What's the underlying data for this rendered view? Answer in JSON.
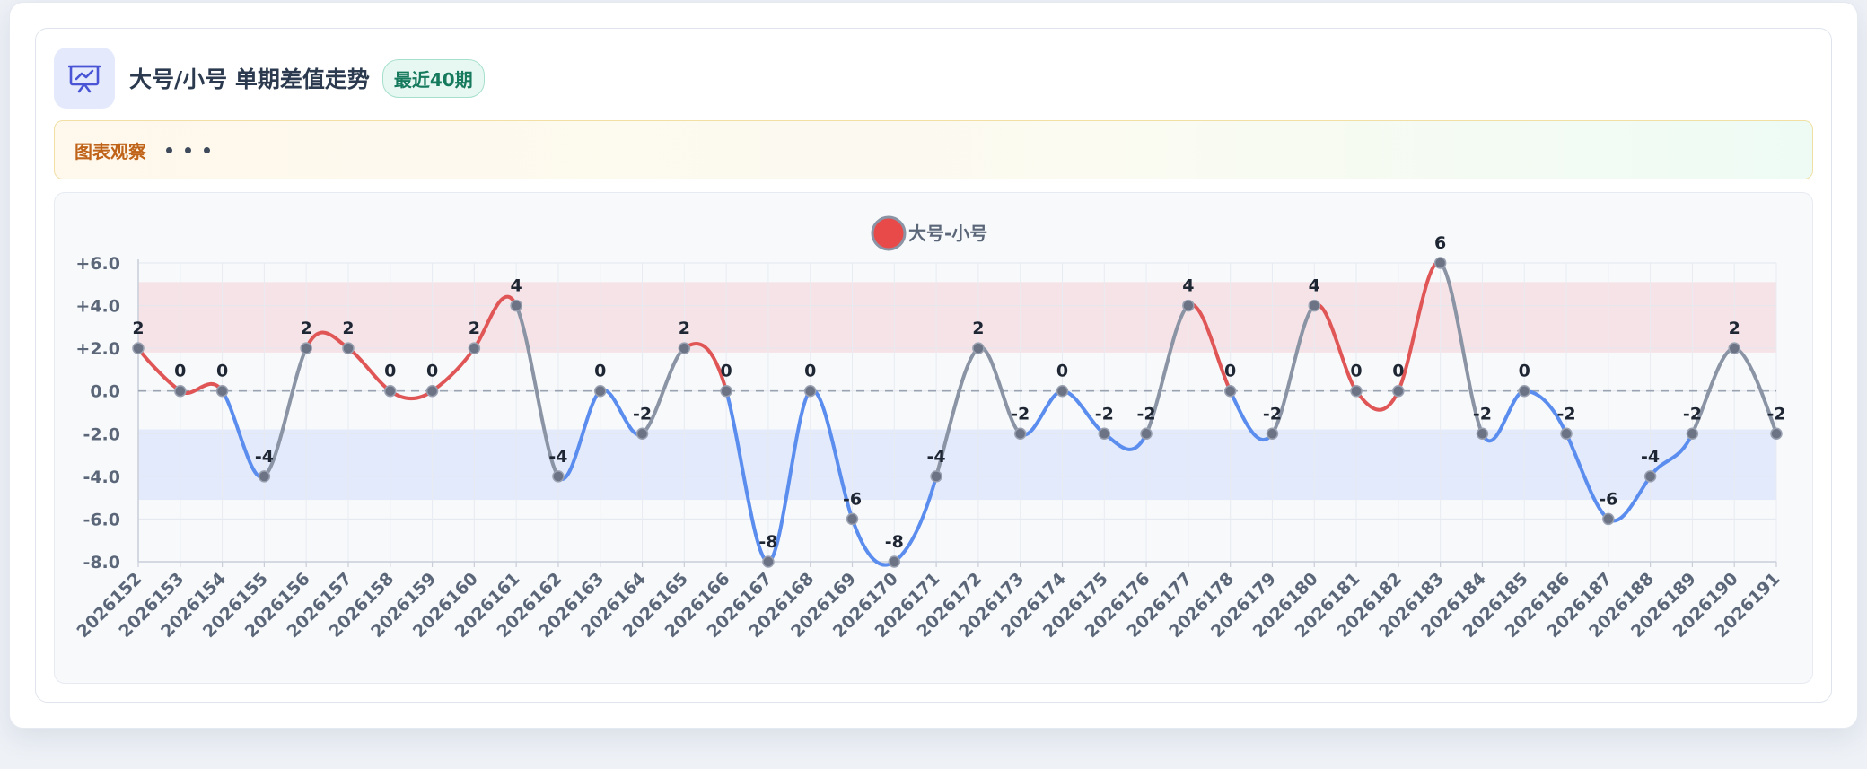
{
  "header": {
    "title": "大号/小号 单期差值走势",
    "badge": "最近40期"
  },
  "observation": {
    "label": "图表观察"
  },
  "colors": {
    "positive": "#e05656",
    "negative": "#5b8def",
    "neutral": "#8a94a5",
    "point": "#6b7385",
    "band_positive": "#f6dfe3",
    "band_negative": "#dfe8fa"
  },
  "chart_data": {
    "type": "line",
    "legend": "大号-小号",
    "legend_position": "top-center",
    "categories": [
      "2026152",
      "2026153",
      "2026154",
      "2026155",
      "2026156",
      "2026157",
      "2026158",
      "2026159",
      "2026160",
      "2026161",
      "2026162",
      "2026163",
      "2026164",
      "2026165",
      "2026166",
      "2026167",
      "2026168",
      "2026169",
      "2026170",
      "2026171",
      "2026172",
      "2026173",
      "2026174",
      "2026175",
      "2026176",
      "2026177",
      "2026178",
      "2026179",
      "2026180",
      "2026181",
      "2026182",
      "2026183",
      "2026184",
      "2026185",
      "2026186",
      "2026187",
      "2026188",
      "2026189",
      "2026190",
      "2026191"
    ],
    "values": [
      2,
      0,
      0,
      -4,
      2,
      2,
      0,
      0,
      2,
      4,
      -4,
      0,
      -2,
      2,
      0,
      -8,
      0,
      -6,
      -8,
      -4,
      2,
      -2,
      0,
      -2,
      -2,
      4,
      0,
      -2,
      4,
      0,
      0,
      6,
      -2,
      0,
      -2,
      -6,
      -4,
      -2,
      2,
      -2
    ],
    "ylim": [
      -8,
      6
    ],
    "yticks": [
      "+6.0",
      "+4.0",
      "+2.0",
      "0.0",
      "-2.0",
      "-4.0",
      "-6.0",
      "-8.0"
    ],
    "bands": [
      {
        "from": 1.8,
        "to": 5.1,
        "kind": "positive"
      },
      {
        "from": -5.1,
        "to": -1.8,
        "kind": "negative"
      }
    ],
    "zero_line": "dashed",
    "grid": true
  }
}
